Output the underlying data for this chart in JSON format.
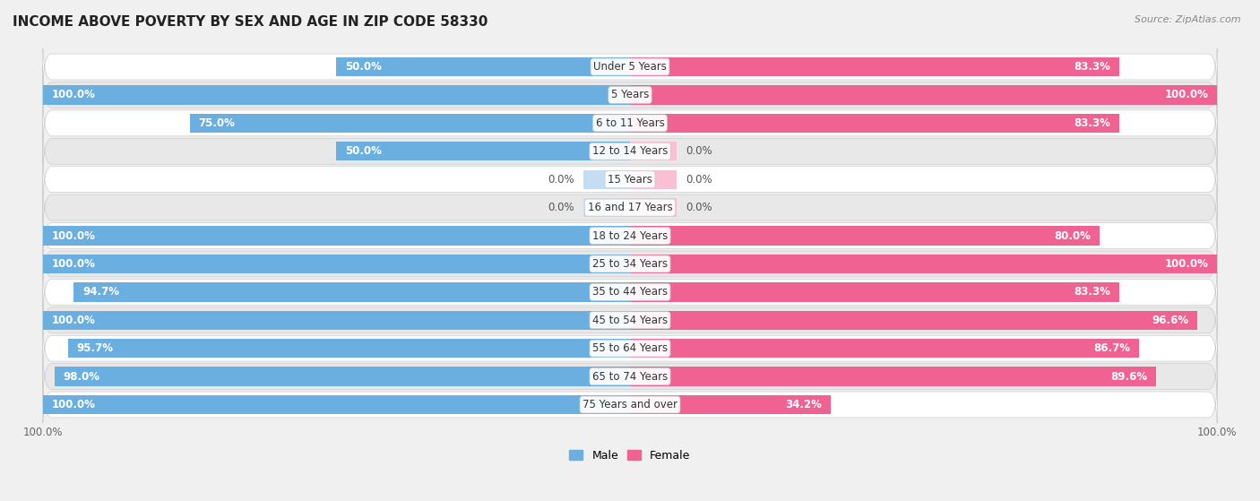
{
  "title": "INCOME ABOVE POVERTY BY SEX AND AGE IN ZIP CODE 58330",
  "source": "Source: ZipAtlas.com",
  "categories": [
    "Under 5 Years",
    "5 Years",
    "6 to 11 Years",
    "12 to 14 Years",
    "15 Years",
    "16 and 17 Years",
    "18 to 24 Years",
    "25 to 34 Years",
    "35 to 44 Years",
    "45 to 54 Years",
    "55 to 64 Years",
    "65 to 74 Years",
    "75 Years and over"
  ],
  "male_values": [
    50.0,
    100.0,
    75.0,
    50.0,
    0.0,
    0.0,
    100.0,
    100.0,
    94.7,
    100.0,
    95.7,
    98.0,
    100.0
  ],
  "female_values": [
    83.3,
    100.0,
    83.3,
    0.0,
    0.0,
    0.0,
    80.0,
    100.0,
    83.3,
    96.6,
    86.7,
    89.6,
    34.2
  ],
  "male_color": "#6aafe0",
  "female_color": "#f06292",
  "male_color_light": "#c5ddf2",
  "female_color_light": "#f9c0d4",
  "male_label": "Male",
  "female_label": "Female",
  "background_color": "#f0f0f0",
  "row_color_odd": "#ffffff",
  "row_color_even": "#e8e8e8",
  "title_fontsize": 11,
  "label_fontsize": 8.5,
  "tick_fontsize": 8.5,
  "cat_fontsize": 8.5
}
